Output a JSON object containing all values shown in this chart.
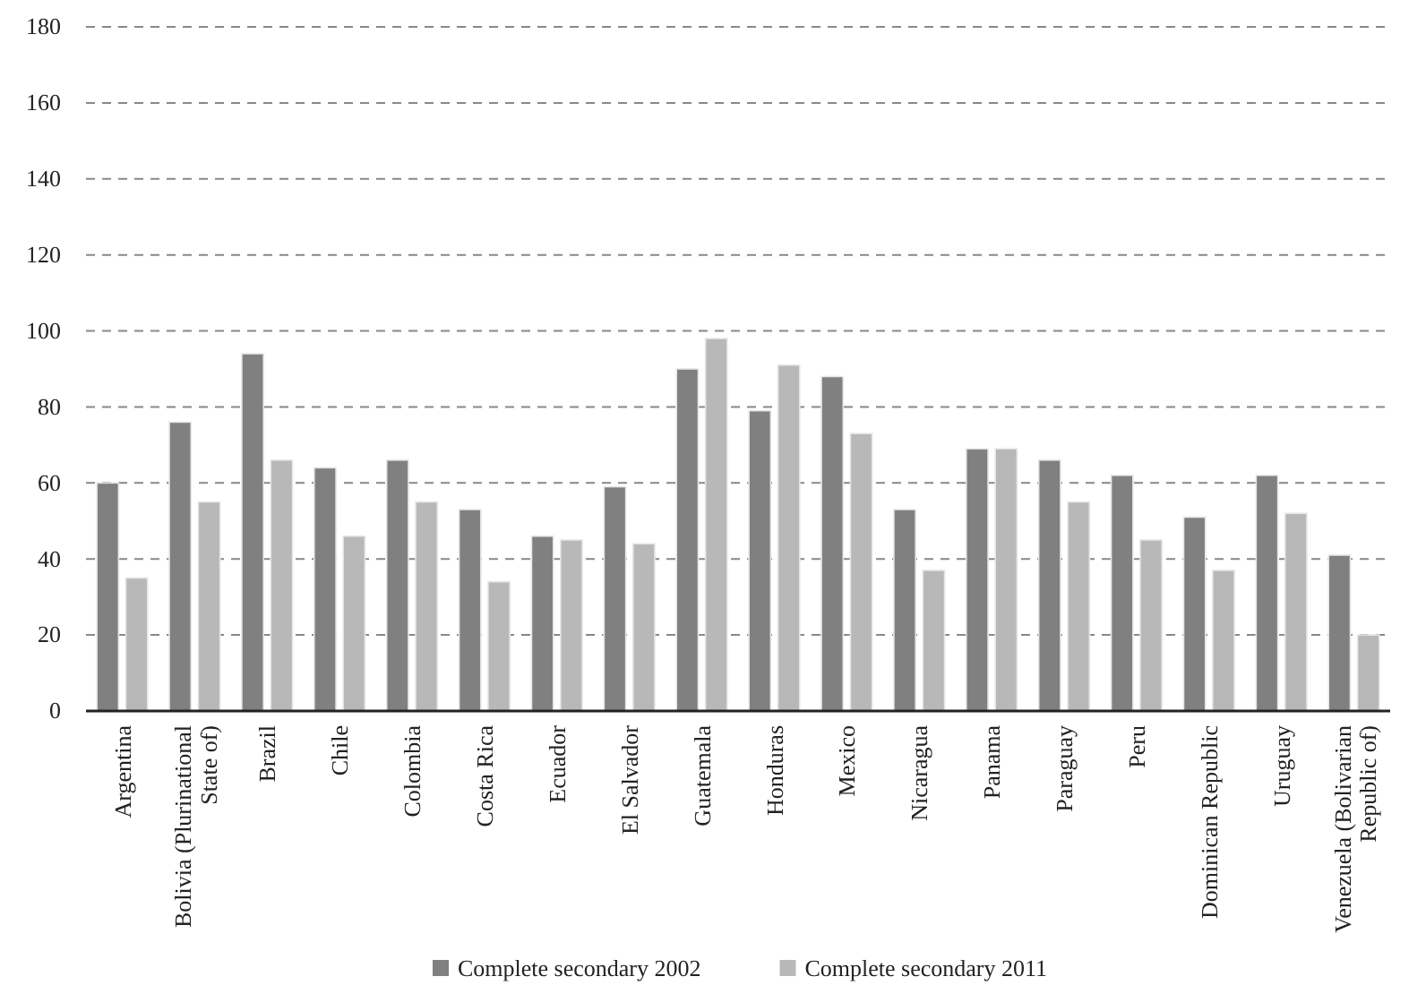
{
  "chart_data": {
    "type": "bar",
    "categories": [
      "Argentina",
      "Bolivia (Plurinational State of)",
      "Brazil",
      "Chile",
      "Colombia",
      "Costa Rica",
      "Ecuador",
      "El Salvador",
      "Guatemala",
      "Honduras",
      "Mexico",
      "Nicaragua",
      "Panama",
      "Paraguay",
      "Peru",
      "Dominican Republic",
      "Uruguay",
      "Venezuela (Bolivarian Republic of)"
    ],
    "series": [
      {
        "name": "Complete secondary 2002",
        "color": "#808080",
        "values": [
          60,
          76,
          94,
          64,
          66,
          53,
          46,
          59,
          90,
          79,
          88,
          53,
          69,
          66,
          62,
          51,
          62,
          41
        ]
      },
      {
        "name": "Complete secondary 2011",
        "color": "#b8b8b8",
        "values": [
          35,
          55,
          66,
          46,
          55,
          34,
          45,
          44,
          98,
          91,
          73,
          37,
          69,
          55,
          45,
          37,
          52,
          20
        ]
      }
    ],
    "ylim": [
      0,
      180
    ],
    "yticks": [
      0,
      20,
      40,
      60,
      80,
      100,
      120,
      140,
      160,
      180
    ],
    "grid": "y",
    "legend": "bottom"
  }
}
